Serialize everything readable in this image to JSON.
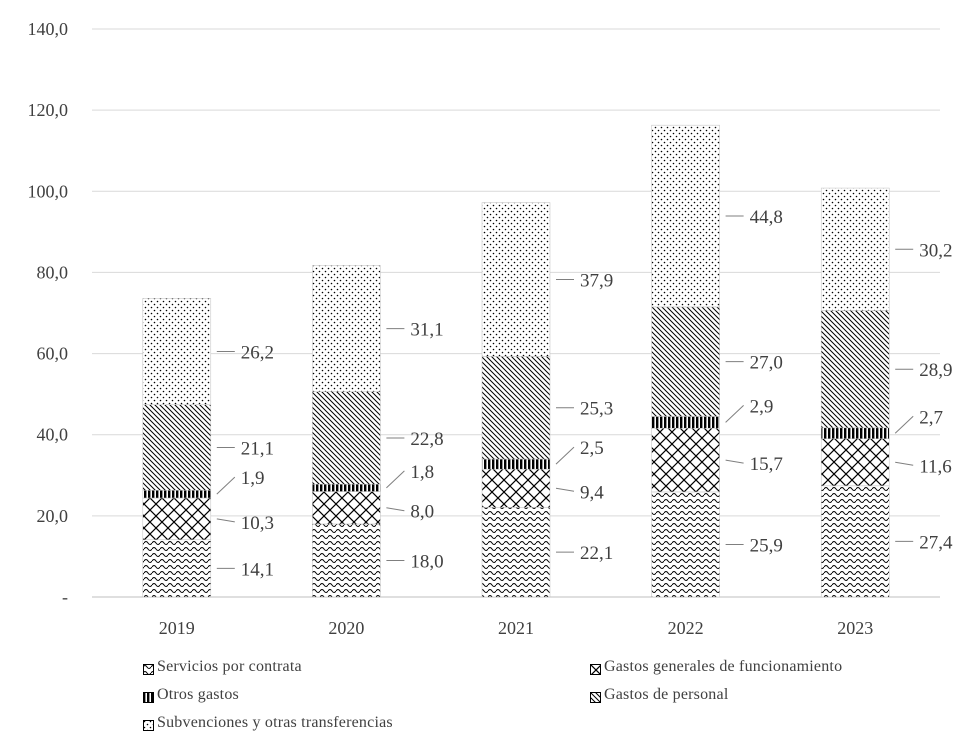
{
  "chart_data": {
    "type": "bar",
    "stacked": true,
    "categories": [
      "2019",
      "2020",
      "2021",
      "2022",
      "2023"
    ],
    "series": [
      {
        "name": "Servicios por contrata",
        "values": [
          14.1,
          18.0,
          22.1,
          25.9,
          27.4
        ],
        "labels": [
          "14,1",
          "18,0",
          "22,1",
          "25,9",
          "27,4"
        ],
        "pattern": "waves"
      },
      {
        "name": "Gastos generales de funcionamiento",
        "values": [
          10.3,
          8.0,
          9.4,
          15.7,
          11.6
        ],
        "labels": [
          "10,3",
          "8,0",
          "9,4",
          "15,7",
          "11,6"
        ],
        "pattern": "crosshatch"
      },
      {
        "name": "Otros gastos",
        "values": [
          1.9,
          1.8,
          2.5,
          2.9,
          2.7
        ],
        "labels": [
          "1,9",
          "1,8",
          "2,5",
          "2,9",
          "2,7"
        ],
        "pattern": "vertical"
      },
      {
        "name": "Gastos de personal",
        "values": [
          21.1,
          22.8,
          25.3,
          27.0,
          28.9
        ],
        "labels": [
          "21,1",
          "22,8",
          "25,3",
          "27,0",
          "28,9"
        ],
        "pattern": "diagonal"
      },
      {
        "name": "Subvenciones y otras transferencias",
        "values": [
          26.2,
          31.1,
          37.9,
          44.8,
          30.2
        ],
        "labels": [
          "26,2",
          "31,1",
          "37,9",
          "44,8",
          "30,2"
        ],
        "pattern": "dots"
      }
    ],
    "yticks": [
      "-",
      "20,0",
      "40,0",
      "60,0",
      "80,0",
      "100,0",
      "120,0",
      "140,0"
    ],
    "ylim": [
      0,
      140
    ],
    "grid": true,
    "legend_position": "bottom",
    "title": "",
    "xlabel": "",
    "ylabel": ""
  },
  "legend": {
    "items": [
      {
        "label": "Servicios por contrata",
        "pattern": "waves"
      },
      {
        "label": "Gastos generales de funcionamiento",
        "pattern": "crosshatch"
      },
      {
        "label": "Otros gastos",
        "pattern": "vertical"
      },
      {
        "label": "Gastos de personal",
        "pattern": "diagonal"
      },
      {
        "label": "Subvenciones y otras transferencias",
        "pattern": "dots"
      }
    ]
  }
}
